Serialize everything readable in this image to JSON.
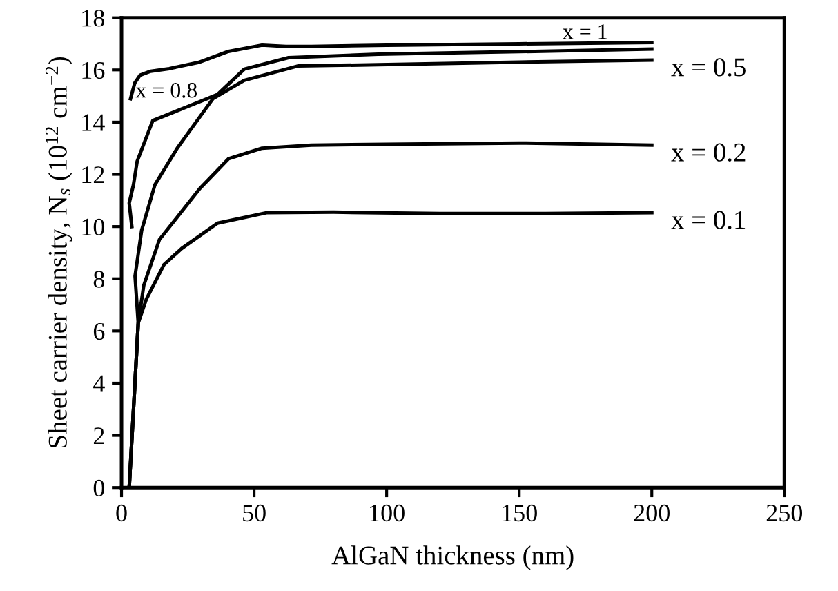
{
  "chart_data": {
    "type": "line",
    "xlabel": "AlGaN thickness (nm)",
    "ylabel": "Sheet carrier density, N$_{s}$ (10$^{12}$ cm$^{−2}$)",
    "xlim": [
      0,
      250
    ],
    "xticks": [
      0,
      50,
      100,
      150,
      200,
      250
    ],
    "ylim": [
      0,
      18
    ],
    "yticks": [
      0,
      2,
      4,
      6,
      8,
      10,
      12,
      14,
      16,
      18
    ],
    "grid": false,
    "marker": "none",
    "line_style": "solid",
    "series": [
      {
        "color": "#000000",
        "x": [
          3.4,
          5,
          7,
          11,
          18,
          29.5,
          40,
          53,
          62,
          71.6,
          100,
          150,
          200
        ],
        "values": [
          14.9,
          15.5,
          15.8,
          15.95,
          16.05,
          16.3,
          16.7,
          16.95,
          16.9,
          16.9,
          16.95,
          17.0,
          17.05
        ]
      },
      {
        "color": "#000000",
        "x": [
          3.9,
          2.9,
          4.5,
          5.9,
          11.8,
          25,
          36.2,
          46.3,
          63,
          96.8,
          150,
          200
        ],
        "values": [
          10.0,
          10.9,
          11.6,
          12.5,
          14.06,
          14.6,
          15.06,
          16.03,
          16.47,
          16.6,
          16.7,
          16.8
        ]
      },
      {
        "color": "#000000",
        "x": [
          2.9,
          6.3,
          5.1,
          7.6,
          12.6,
          21,
          34.5,
          46.3,
          66.5,
          96.8,
          150,
          200
        ],
        "values": [
          0,
          6.3,
          8.1,
          9.86,
          11.6,
          13.0,
          14.9,
          15.6,
          16.15,
          16.2,
          16.3,
          16.38
        ]
      },
      {
        "color": "#000000",
        "x": [
          2.9,
          6.3,
          8.4,
          14.3,
          29.5,
          40.4,
          53,
          71.6,
          100,
          150,
          200
        ],
        "values": [
          0,
          6.3,
          7.75,
          9.5,
          11.45,
          12.6,
          13.0,
          13.12,
          13.15,
          13.2,
          13.12
        ]
      },
      {
        "color": "#000000",
        "x": [
          2.9,
          6.3,
          9.3,
          16,
          22.7,
          36.2,
          54.7,
          80,
          120,
          160,
          200
        ],
        "values": [
          0,
          6.3,
          7.2,
          8.54,
          9.16,
          10.13,
          10.53,
          10.55,
          10.5,
          10.5,
          10.53
        ]
      }
    ],
    "annotations": [
      {
        "text": "x = 1",
        "x": 172.8,
        "y": 17.0
      },
      {
        "text": "x = 0.8",
        "x": 11.8,
        "y": 14.06
      },
      {
        "text": "x = 0.5",
        "x": 200,
        "y": 16.38
      },
      {
        "text": "x = 0.2",
        "x": 200,
        "y": 13.12
      },
      {
        "text": "x = 0.1",
        "x": 200,
        "y": 10.53
      }
    ]
  }
}
